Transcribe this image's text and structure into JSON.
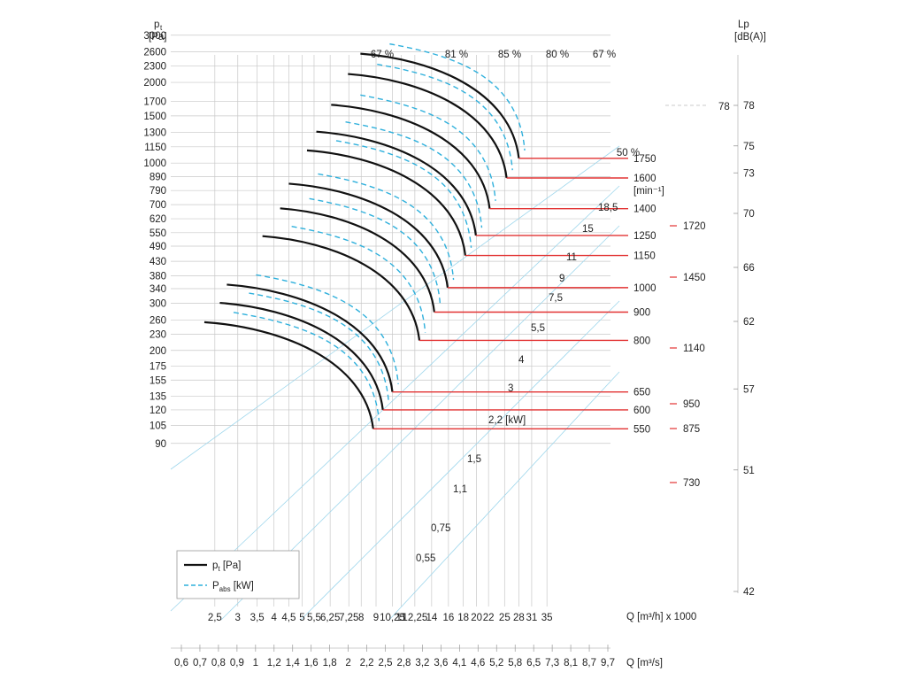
{
  "chart_data": {
    "type": "line",
    "colors": {
      "pressure": "#111111",
      "power": "#2fb0dc",
      "speed": "#e23333",
      "grid": "#c8c8c8",
      "efficiency": "#9fd7ec"
    },
    "left_axis": {
      "label_main": "p",
      "label_sub": "t",
      "unit": "[Pa]",
      "ticks": [
        3000,
        2600,
        2300,
        2000,
        1700,
        1500,
        1300,
        1150,
        1000,
        890,
        790,
        700,
        620,
        550,
        490,
        430,
        380,
        340,
        300,
        260,
        230,
        200,
        175,
        155,
        135,
        120,
        105,
        90
      ],
      "scale": "log"
    },
    "right_axis": {
      "label": "Lp",
      "unit": "[dB(A)]",
      "ticks": [
        78,
        75,
        73,
        70,
        66,
        62,
        57,
        51,
        42
      ],
      "dashed_reference": "78"
    },
    "x_axis_m3h": {
      "label": "Q [m³/h] x 1000",
      "ticks": [
        "2,5",
        "3",
        "3,5",
        "4",
        "4,5",
        "5",
        "5,5",
        "6,25",
        "7,25",
        "8",
        "9",
        "10,25",
        "11",
        "12,25",
        "14",
        "16",
        "18",
        "20",
        "22",
        "25",
        "28",
        "31",
        "35"
      ],
      "tick_values": [
        2.5,
        3,
        3.5,
        4,
        4.5,
        5,
        5.5,
        6.25,
        7.25,
        8,
        9,
        10.25,
        11,
        12.25,
        14,
        16,
        18,
        20,
        22,
        25,
        28,
        31,
        35
      ]
    },
    "x_axis_m3s": {
      "label": "Q [m³/s]",
      "ticks": [
        "0,6",
        "0,7",
        "0,8",
        "0,9",
        "1",
        "1,2",
        "1,4",
        "1,6",
        "1,8",
        "2",
        "2,2",
        "2,5",
        "2,8",
        "3,2",
        "3,6",
        "4,1",
        "4,6",
        "5,2",
        "5,8",
        "6,5",
        "7,3",
        "8,1",
        "8,7",
        "9,7"
      ]
    },
    "speed_unit": "[min⁻¹]",
    "speed_curves": [
      {
        "rpm": "550",
        "q_start": 2.3,
        "p_start": 255,
        "q_end": 8.8,
        "p_end": 102
      },
      {
        "rpm": "600",
        "q_start": 2.6,
        "p_start": 301,
        "q_end": 9.5,
        "p_end": 120
      },
      {
        "rpm": "650",
        "q_start": 2.75,
        "p_start": 352,
        "q_end": 10.25,
        "p_end": 140
      },
      {
        "rpm": "800",
        "q_start": 3.65,
        "p_start": 534,
        "q_end": 12.7,
        "p_end": 218
      },
      {
        "rpm": "900",
        "q_start": 4.2,
        "p_start": 678,
        "q_end": 14.3,
        "p_end": 278
      },
      {
        "rpm": "1000",
        "q_start": 4.5,
        "p_start": 838,
        "q_end": 15.9,
        "p_end": 343
      },
      {
        "rpm": "1150",
        "q_start": 5.2,
        "p_start": 1115,
        "q_end": 18.3,
        "p_end": 452
      },
      {
        "rpm": "1250",
        "q_start": 5.6,
        "p_start": 1310,
        "q_end": 19.9,
        "p_end": 537
      },
      {
        "rpm": "1400",
        "q_start": 6.3,
        "p_start": 1650,
        "q_end": 22.2,
        "p_end": 676
      },
      {
        "rpm": "1600",
        "q_start": 7.2,
        "p_start": 2150,
        "q_end": 25.4,
        "p_end": 880
      },
      {
        "rpm": "1750",
        "q_start": 7.95,
        "p_start": 2560,
        "q_end": 28.0,
        "p_end": 1042
      }
    ],
    "speed_marks_right": [
      "1720",
      "1450",
      "1140",
      "950",
      "875",
      "730"
    ],
    "power_labels": [
      "0,55",
      "0,75",
      "1,1",
      "1,5",
      "2,2 [kW]",
      "3",
      "4",
      "5,5",
      "7,5",
      "9",
      "11",
      "15",
      "18,5"
    ],
    "efficiency_labels": [
      "67 %",
      "81 %",
      "85 %",
      "80 %",
      "67 %",
      "50 %"
    ],
    "legend": [
      {
        "label_main": "p",
        "label_sub": "t",
        "label_unit": " [Pa]",
        "style": "solid"
      },
      {
        "label_main": "P",
        "label_sub": "abs",
        "label_unit": " [kW]",
        "style": "dashed"
      }
    ]
  }
}
